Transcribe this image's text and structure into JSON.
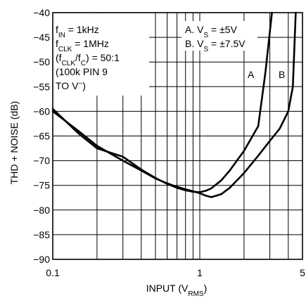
{
  "chart_data": {
    "type": "line",
    "title": "",
    "xlabel": {
      "main": "INPUT (V",
      "sub": "RMS",
      "close": ")"
    },
    "ylabel": "THD + NOISE (dB)",
    "x_scale": "log",
    "xlim": [
      0.1,
      5
    ],
    "ylim": [
      -90,
      -40
    ],
    "x_tick_labels": [
      {
        "value": 0.1,
        "label": "0.1"
      },
      {
        "value": 1,
        "label": "1"
      },
      {
        "value": 5,
        "label": "5"
      }
    ],
    "x_grid": [
      0.2,
      0.3,
      0.4,
      0.5,
      0.6,
      0.7,
      0.8,
      0.9,
      1,
      2,
      3,
      4
    ],
    "y_ticks": [
      -90,
      -85,
      -80,
      -75,
      -70,
      -65,
      -60,
      -55,
      -50,
      -45,
      -40
    ],
    "y_tick_labels": [
      "−90",
      "−85",
      "−80",
      "−75",
      "−70",
      "−65",
      "−60",
      "−55",
      "−50",
      "−45",
      "−40"
    ],
    "grid": true,
    "legend": "top-right",
    "conditions": [
      {
        "main": "f",
        "sub": "IN",
        "rest": " = 1kHz"
      },
      {
        "main": "f",
        "sub": "CLK",
        "rest": " = 1MHz"
      },
      {
        "pre": "(f",
        "sub": "CLK",
        "mid": "/f",
        "sub2": "C",
        "rest": ") = 50:1"
      },
      {
        "main": "(100k PIN 9"
      },
      {
        "main": "TO V",
        "sup": "−",
        "rest": ")"
      }
    ],
    "legend_entries": [
      {
        "pre": "A. V",
        "sub": "S",
        "rest": " = ±5V"
      },
      {
        "pre": "B. V",
        "sub": "S",
        "rest": " = ±7.5V"
      }
    ],
    "series": [
      {
        "name": "A",
        "x": [
          0.1,
          0.15,
          0.2,
          0.3,
          0.4,
          0.5,
          0.6,
          0.7,
          0.8,
          0.9,
          1.0,
          1.1,
          1.2,
          1.4,
          1.6,
          2.0,
          2.5,
          2.8,
          3.1
        ],
        "y": [
          -59.5,
          -64.5,
          -67.5,
          -69.2,
          -71.8,
          -73.5,
          -74.7,
          -75.5,
          -76.0,
          -76.3,
          -76.4,
          -76.1,
          -75.6,
          -74.0,
          -72.0,
          -68.0,
          -63.0,
          -52.0,
          -40.0
        ]
      },
      {
        "name": "B",
        "x": [
          0.1,
          0.15,
          0.2,
          0.3,
          0.4,
          0.5,
          0.6,
          0.7,
          0.8,
          0.9,
          1.0,
          1.1,
          1.2,
          1.4,
          1.6,
          2.0,
          2.5,
          3.0,
          3.5,
          4.0,
          4.3,
          4.5
        ],
        "y": [
          -60.0,
          -64.0,
          -67.0,
          -70.0,
          -72.0,
          -73.6,
          -74.6,
          -75.3,
          -75.8,
          -76.2,
          -76.6,
          -77.1,
          -77.4,
          -76.8,
          -75.5,
          -72.5,
          -69.0,
          -66.0,
          -63.5,
          -60.0,
          -55.0,
          -40.0
        ]
      }
    ],
    "series_labels": [
      "A",
      "B"
    ]
  }
}
